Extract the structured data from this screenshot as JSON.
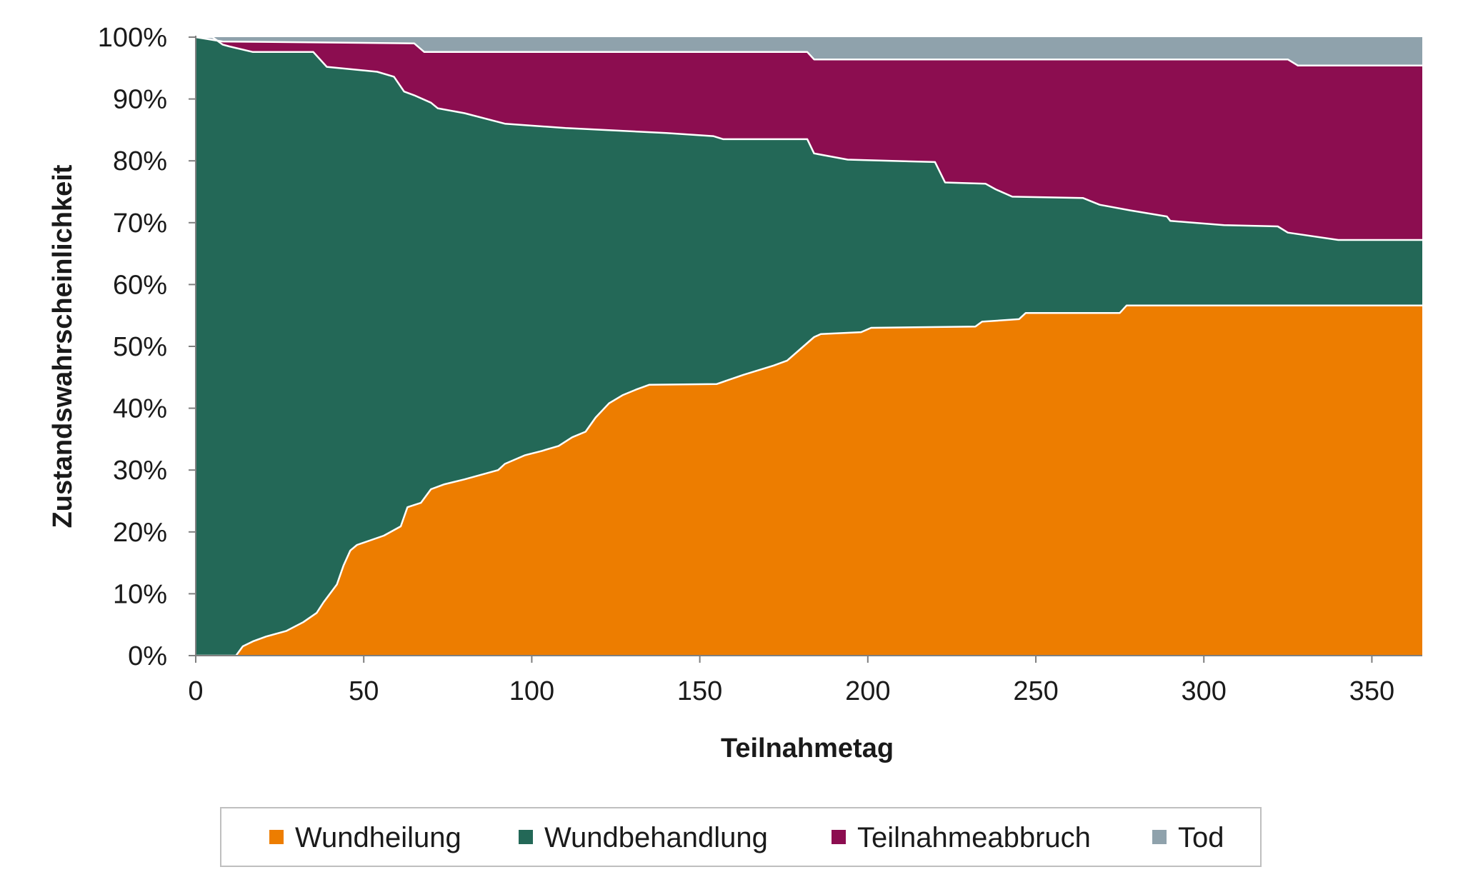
{
  "chart_data": {
    "type": "area",
    "stacked": true,
    "title": "",
    "xlabel": "Teilnahmetag",
    "ylabel": "Zustandswahrscheinlichkeit",
    "xlim": [
      0,
      365
    ],
    "ylim": [
      0,
      100
    ],
    "x_ticks": [
      0,
      50,
      100,
      150,
      200,
      250,
      300,
      350
    ],
    "x_tick_labels": [
      "0",
      "50",
      "100",
      "150",
      "200",
      "250",
      "300",
      "350"
    ],
    "y_ticks": [
      0,
      10,
      20,
      30,
      40,
      50,
      60,
      70,
      80,
      90,
      100
    ],
    "y_tick_labels": [
      "0%",
      "10%",
      "20%",
      "30%",
      "40%",
      "50%",
      "60%",
      "70%",
      "80%",
      "90%",
      "100%"
    ],
    "legend_position": "bottom",
    "series_note": "boundaries are cumulative percentages (lower/upper edges of stacked areas)",
    "series": [
      {
        "name": "Wundheilung",
        "color": "#ED7D00",
        "boundary": [
          [
            0,
            0
          ],
          [
            12,
            0
          ],
          [
            14,
            1.5
          ],
          [
            17,
            2.3
          ],
          [
            21,
            3.1
          ],
          [
            27,
            4.0
          ],
          [
            32,
            5.4
          ],
          [
            36,
            6.9
          ],
          [
            38,
            8.6
          ],
          [
            42,
            11.5
          ],
          [
            44,
            14.6
          ],
          [
            46,
            17.0
          ],
          [
            48,
            17.9
          ],
          [
            56,
            19.4
          ],
          [
            61,
            20.9
          ],
          [
            63,
            24.0
          ],
          [
            67,
            24.7
          ],
          [
            70,
            26.9
          ],
          [
            74,
            27.7
          ],
          [
            80,
            28.5
          ],
          [
            90,
            30.0
          ],
          [
            92,
            31.0
          ],
          [
            98,
            32.4
          ],
          [
            103,
            33.1
          ],
          [
            108,
            33.9
          ],
          [
            112,
            35.3
          ],
          [
            116,
            36.2
          ],
          [
            119,
            38.5
          ],
          [
            123,
            40.8
          ],
          [
            127,
            42.1
          ],
          [
            131,
            43.0
          ],
          [
            135,
            43.8
          ],
          [
            155,
            43.9
          ],
          [
            163,
            45.4
          ],
          [
            172,
            46.9
          ],
          [
            176,
            47.7
          ],
          [
            180,
            49.6
          ],
          [
            184,
            51.5
          ],
          [
            186,
            52.0
          ],
          [
            198,
            52.3
          ],
          [
            201,
            53.0
          ],
          [
            232,
            53.2
          ],
          [
            234,
            54.0
          ],
          [
            245,
            54.4
          ],
          [
            247,
            55.4
          ],
          [
            275,
            55.4
          ],
          [
            277,
            56.6
          ],
          [
            365,
            56.6
          ]
        ]
      },
      {
        "name": "Wundbehandlung",
        "color": "#236857",
        "boundary": [
          [
            0,
            100
          ],
          [
            5,
            100
          ],
          [
            8,
            98.8
          ],
          [
            10,
            98.5
          ],
          [
            17,
            97.6
          ],
          [
            35,
            97.6
          ],
          [
            39,
            95.2
          ],
          [
            54,
            94.4
          ],
          [
            59,
            93.6
          ],
          [
            62,
            91.2
          ],
          [
            65,
            90.6
          ],
          [
            70,
            89.4
          ],
          [
            72,
            88.5
          ],
          [
            80,
            87.7
          ],
          [
            92,
            86.0
          ],
          [
            110,
            85.3
          ],
          [
            140,
            84.5
          ],
          [
            154,
            84.0
          ],
          [
            157,
            83.5
          ],
          [
            182,
            83.5
          ],
          [
            184,
            81.2
          ],
          [
            194,
            80.2
          ],
          [
            220,
            79.8
          ],
          [
            223,
            76.5
          ],
          [
            235,
            76.3
          ],
          [
            238,
            75.4
          ],
          [
            243,
            74.2
          ],
          [
            264,
            74.0
          ],
          [
            269,
            72.9
          ],
          [
            278,
            72.0
          ],
          [
            289,
            71.0
          ],
          [
            290,
            70.3
          ],
          [
            306,
            69.6
          ],
          [
            322,
            69.4
          ],
          [
            325,
            68.4
          ],
          [
            340,
            67.2
          ],
          [
            365,
            67.2
          ]
        ]
      },
      {
        "name": "Teilnahmeabbruch",
        "color": "#8C0D50",
        "boundary": [
          [
            0,
            100
          ],
          [
            8,
            99.3
          ],
          [
            65,
            99.0
          ],
          [
            68,
            97.6
          ],
          [
            182,
            97.6
          ],
          [
            184,
            96.4
          ],
          [
            325,
            96.4
          ],
          [
            328,
            95.4
          ],
          [
            365,
            95.4
          ]
        ]
      },
      {
        "name": "Tod",
        "color": "#8FA2AC",
        "boundary": [
          [
            0,
            100
          ],
          [
            365,
            100
          ]
        ]
      }
    ]
  },
  "legend": {
    "items": [
      {
        "label": "Wundheilung",
        "color": "#ED7D00"
      },
      {
        "label": "Wundbehandlung",
        "color": "#236857"
      },
      {
        "label": "Teilnahmeabbruch",
        "color": "#8C0D50"
      },
      {
        "label": "Tod",
        "color": "#8FA2AC"
      }
    ]
  }
}
